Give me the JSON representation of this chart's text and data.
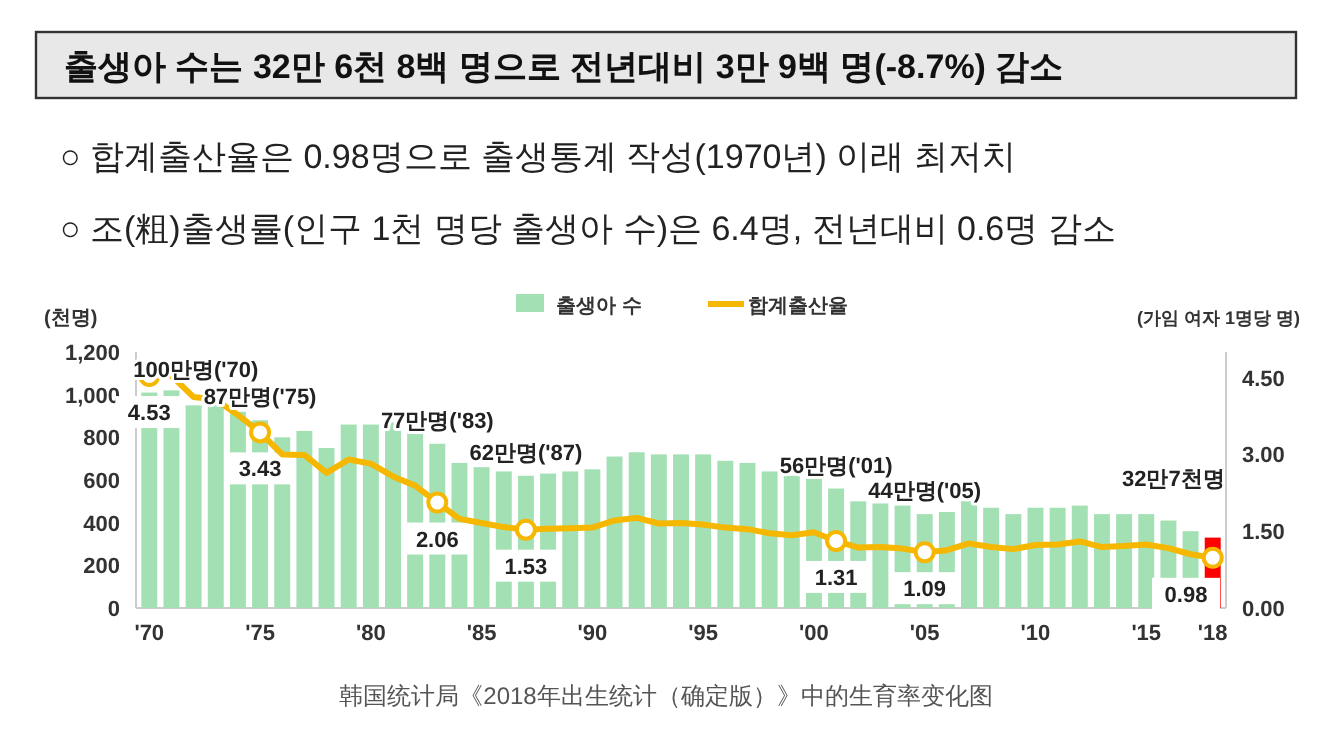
{
  "chart_data": {
    "type": "bar",
    "title": "출생아 수는 32만 6천 8백 명으로 전년대비 3만 9백 명(-8.7%) 감소",
    "subtitle": "○ 합계출산율은 0.98명으로 출생통계 작성(1970년) 이래 최저치",
    "annotations": [
      "○ 조(粗)출생률(인구 1천 명당 출생아 수)은 6.4명, 전년대비 0.6명 감소",
      {
        "text": "100만명('70)",
        "x": 1970,
        "y": 1010
      },
      {
        "text": "87만명('75)",
        "x": 1975,
        "y": 880
      },
      {
        "text": "77만명('83)",
        "x": 1983,
        "y": 770
      },
      {
        "text": "62만명('87)",
        "x": 1987,
        "y": 620
      },
      {
        "text": "56만명('01)",
        "x": 2001,
        "y": 560
      },
      {
        "text": "44만명('05)",
        "x": 2005,
        "y": 440
      },
      {
        "text": "32만7천명",
        "x": 2018,
        "y": 330
      },
      "韩国统计局《2018年出生统计（确定版）》中的生育率变化图"
    ],
    "ylabel": "(천명)",
    "y2label": "(가임 여자 1명당 명)",
    "x": [
      1970,
      1971,
      1972,
      1973,
      1974,
      1975,
      1976,
      1977,
      1978,
      1979,
      1980,
      1981,
      1982,
      1983,
      1984,
      1985,
      1986,
      1987,
      1988,
      1989,
      1990,
      1991,
      1992,
      1993,
      1994,
      1995,
      1996,
      1997,
      1998,
      1999,
      2000,
      2001,
      2002,
      2003,
      2004,
      2005,
      2006,
      2007,
      2008,
      2009,
      2010,
      2011,
      2012,
      2013,
      2014,
      2015,
      2016,
      2017,
      2018
    ],
    "xlim": [
      1969.4,
      2018.6
    ],
    "xticks": [
      {
        "value": 1970,
        "label": "'70"
      },
      {
        "value": 1975,
        "label": "'75"
      },
      {
        "value": 1980,
        "label": "'80"
      },
      {
        "value": 1985,
        "label": "'85"
      },
      {
        "value": 1990,
        "label": "'90"
      },
      {
        "value": 1995,
        "label": "'95"
      },
      {
        "value": 2000,
        "label": "'00"
      },
      {
        "value": 2005,
        "label": "'05"
      },
      {
        "value": 2010,
        "label": "'10"
      },
      {
        "value": 2015,
        "label": "'15"
      },
      {
        "value": 2018,
        "label": "'18"
      }
    ],
    "ylim": [
      0,
      1200
    ],
    "yticks": [
      0,
      200,
      400,
      600,
      800,
      {
        "value": 1000,
        "label": "1,000"
      },
      {
        "value": 1200,
        "label": "1,200"
      }
    ],
    "y2lim": [
      0,
      5
    ],
    "y2ticks": [
      {
        "value": 0,
        "label": "0.00"
      },
      {
        "value": 1.5,
        "label": "1.50"
      },
      {
        "value": 3,
        "label": "3.00"
      },
      {
        "value": 4.5,
        "label": "4.50"
      }
    ],
    "legend": "top",
    "grid": false,
    "series": [
      {
        "name": "출생아 수",
        "color": "#a3e0b3",
        "colors": [
          "#a3e0b3",
          "#a3e0b3",
          "#a3e0b3",
          "#a3e0b3",
          "#a3e0b3",
          "#a3e0b3",
          "#a3e0b3",
          "#a3e0b3",
          "#a3e0b3",
          "#a3e0b3",
          "#a3e0b3",
          "#a3e0b3",
          "#a3e0b3",
          "#a3e0b3",
          "#a3e0b3",
          "#a3e0b3",
          "#a3e0b3",
          "#a3e0b3",
          "#a3e0b3",
          "#a3e0b3",
          "#a3e0b3",
          "#a3e0b3",
          "#a3e0b3",
          "#a3e0b3",
          "#a3e0b3",
          "#a3e0b3",
          "#a3e0b3",
          "#a3e0b3",
          "#a3e0b3",
          "#a3e0b3",
          "#a3e0b3",
          "#a3e0b3",
          "#a3e0b3",
          "#a3e0b3",
          "#a3e0b3",
          "#a3e0b3",
          "#a3e0b3",
          "#a3e0b3",
          "#a3e0b3",
          "#a3e0b3",
          "#a3e0b3",
          "#a3e0b3",
          "#a3e0b3",
          "#a3e0b3",
          "#a3e0b3",
          "#a3e0b3",
          "#a3e0b3",
          "#a3e0b3",
          "#ff0000"
        ],
        "values": [
          1010,
          1020,
          950,
          970,
          920,
          880,
          800,
          830,
          750,
          860,
          860,
          870,
          850,
          770,
          680,
          660,
          640,
          620,
          630,
          640,
          650,
          710,
          730,
          720,
          720,
          720,
          690,
          680,
          640,
          620,
          640,
          560,
          500,
          490,
          480,
          440,
          450,
          500,
          470,
          440,
          470,
          470,
          480,
          440,
          440,
          440,
          410,
          360,
          330
        ]
      },
      {
        "name": "합계출산율",
        "type": "line",
        "axis": "y2",
        "color": "#f5b700",
        "values": [
          4.53,
          4.54,
          4.12,
          4.07,
          3.77,
          3.43,
          3.0,
          2.99,
          2.64,
          2.9,
          2.82,
          2.57,
          2.39,
          2.06,
          1.74,
          1.66,
          1.58,
          1.53,
          1.55,
          1.56,
          1.57,
          1.71,
          1.76,
          1.65,
          1.66,
          1.63,
          1.57,
          1.54,
          1.46,
          1.42,
          1.48,
          1.31,
          1.18,
          1.19,
          1.16,
          1.09,
          1.13,
          1.26,
          1.19,
          1.15,
          1.23,
          1.24,
          1.3,
          1.19,
          1.21,
          1.24,
          1.17,
          1.05,
          0.98
        ],
        "value_labels": [
          "4.53",
          null,
          null,
          null,
          null,
          "3.43",
          null,
          null,
          null,
          null,
          null,
          null,
          null,
          "2.06",
          null,
          null,
          null,
          "1.53",
          null,
          null,
          null,
          null,
          null,
          null,
          null,
          null,
          null,
          null,
          null,
          null,
          null,
          "1.31",
          null,
          null,
          null,
          "1.09",
          null,
          null,
          null,
          null,
          null,
          null,
          null,
          null,
          null,
          null,
          null,
          null,
          "0.98"
        ]
      }
    ]
  }
}
